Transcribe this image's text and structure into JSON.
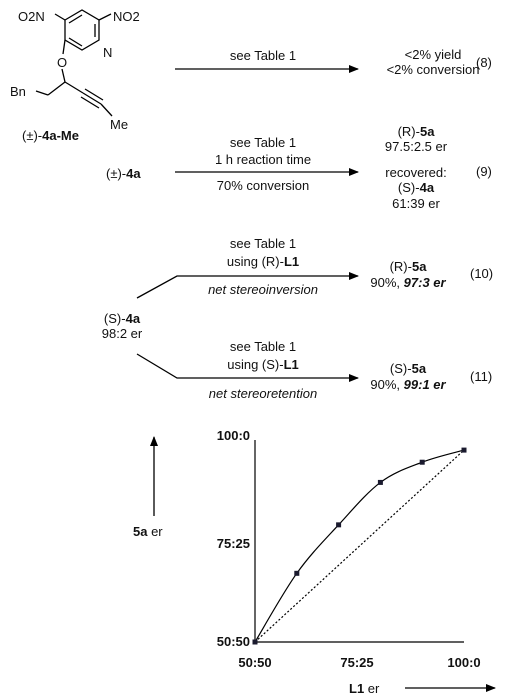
{
  "molecule": {
    "no2_left": "O2N",
    "no2_right": "NO2",
    "o_atom": "O",
    "n_atom": "N",
    "bn": "Bn",
    "me": "Me",
    "label_prefix": "(±)-",
    "label_bold": "4a-Me"
  },
  "eq8": {
    "condition": "see Table 1",
    "result_line1": "<2% yield",
    "result_line2": "<2% conversion",
    "number": "(8)"
  },
  "eq9": {
    "substrate_prefix": "(±)-",
    "substrate_bold": "4a",
    "condition1": "see Table 1",
    "condition2": "1 h reaction time",
    "condition3": "70% conversion",
    "product_prefix": "(R)-",
    "product_bold": "5a",
    "product_er": "97.5:2.5 er",
    "recovered_label": "recovered:",
    "recovered_prefix": "(S)-",
    "recovered_bold": "4a",
    "recovered_er": "61:39 er",
    "number": "(9)"
  },
  "branch": {
    "substrate_prefix": "(S)-",
    "substrate_bold": "4a",
    "substrate_er": "98:2 er"
  },
  "eq10": {
    "condition1": "see Table 1",
    "condition2_prefix": "using (R)-",
    "condition2_bold": "L1",
    "condition3": "net stereoinversion",
    "product_prefix": "(R)-",
    "product_bold": "5a",
    "yield": "90%, ",
    "er": "97:3 er",
    "number": "(10)"
  },
  "eq11": {
    "condition1": "see Table 1",
    "condition2_prefix": "using (S)-",
    "condition2_bold": "L1",
    "condition3": "net stereoretention",
    "product_prefix": "(S)-",
    "product_bold": "5a",
    "yield": "90%, ",
    "er": "99:1 er",
    "number": "(11)"
  },
  "chart_data": {
    "type": "scatter",
    "x_label_bold": "L1",
    "x_label_rest": " er",
    "y_label_bold": "5a",
    "y_label_rest": " er",
    "x_ticks": [
      "50:50",
      "75:25",
      "100:0"
    ],
    "y_ticks": [
      "50:50",
      "75:25",
      "100:0"
    ],
    "xlim": [
      50,
      100
    ],
    "ylim": [
      50,
      100
    ],
    "points": [
      {
        "x": 50,
        "y": 50
      },
      {
        "x": 60,
        "y": 67
      },
      {
        "x": 70,
        "y": 79
      },
      {
        "x": 80,
        "y": 89.5
      },
      {
        "x": 90,
        "y": 94.5
      },
      {
        "x": 100,
        "y": 97.5
      }
    ],
    "reference_line": [
      [
        50,
        50
      ],
      [
        100,
        97.5
      ]
    ]
  }
}
